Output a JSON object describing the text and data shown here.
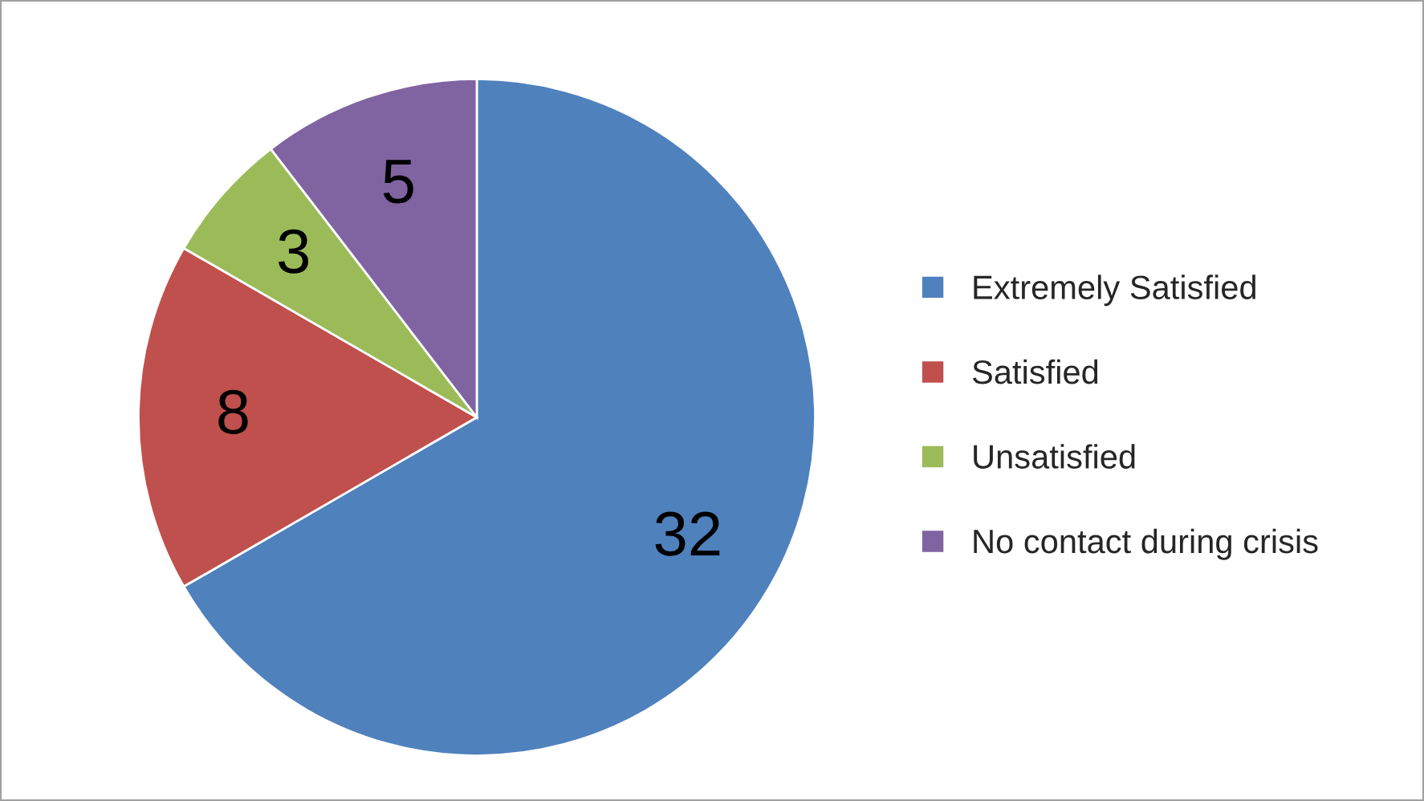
{
  "chart_data": {
    "type": "pie",
    "categories": [
      "Extremely Satisfied",
      "Satisfied",
      "Unsatisfied",
      "No contact during crisis"
    ],
    "values": [
      32,
      8,
      3,
      5
    ],
    "colors": [
      "#4f81bd",
      "#c0504d",
      "#9bbb59",
      "#8064a2"
    ],
    "data_labels": true,
    "legend": "right"
  }
}
